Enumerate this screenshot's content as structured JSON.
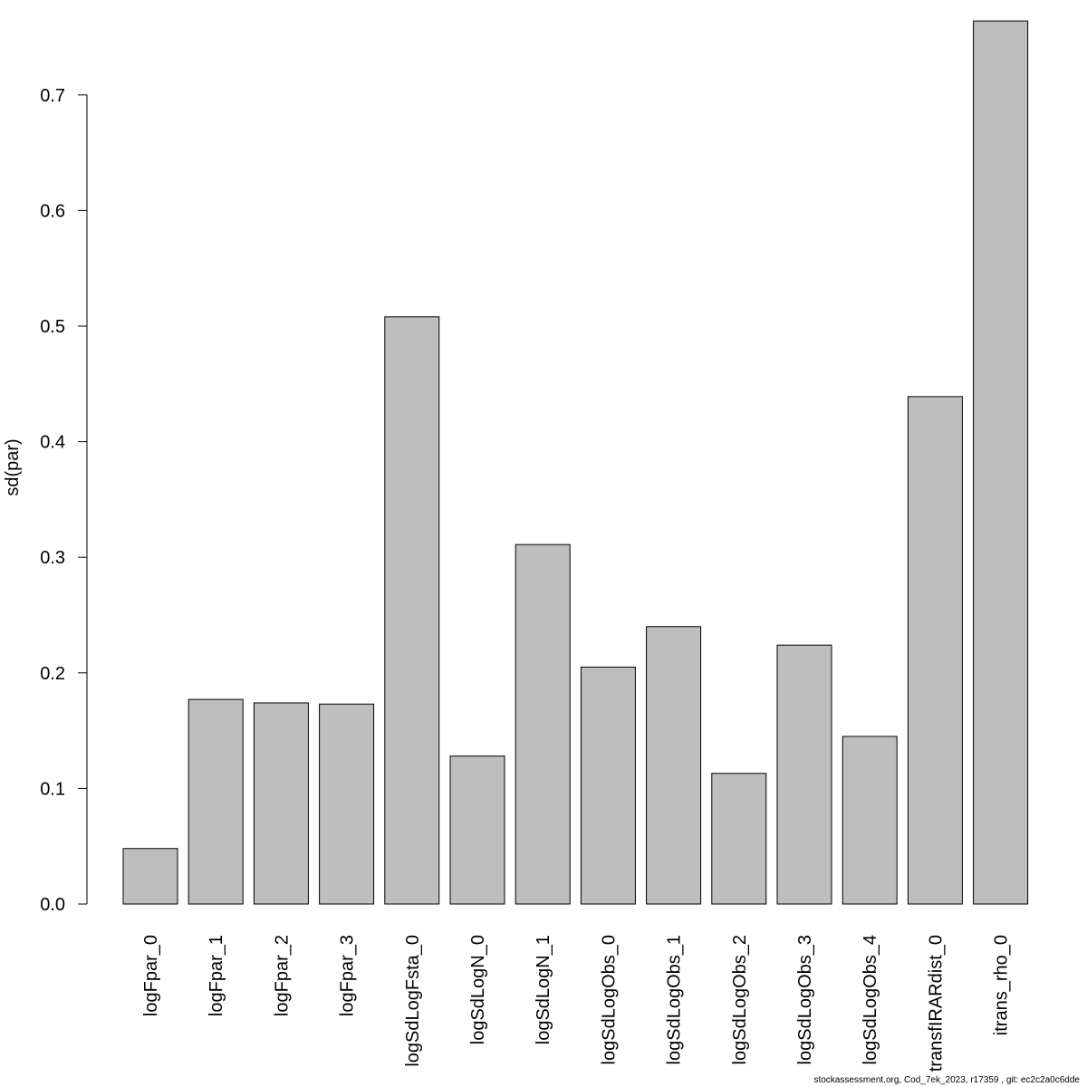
{
  "chart_data": {
    "type": "bar",
    "title": "",
    "xlabel": "",
    "ylabel": "sd(par)",
    "ylim": [
      0,
      0.78
    ],
    "yticks": [
      "0.0",
      "0.1",
      "0.2",
      "0.3",
      "0.4",
      "0.5",
      "0.6",
      "0.7"
    ],
    "grid": false,
    "bar_color": "#bebebe",
    "categories": [
      "logFpar_0",
      "logFpar_1",
      "logFpar_2",
      "logFpar_3",
      "logSdLogFsta_0",
      "logSdLogN_0",
      "logSdLogN_1",
      "logSdLogObs_0",
      "logSdLogObs_1",
      "logSdLogObs_2",
      "logSdLogObs_3",
      "logSdLogObs_4",
      "transfIRARdist_0",
      "itrans_rho_0"
    ],
    "values": [
      0.048,
      0.177,
      0.174,
      0.173,
      0.508,
      0.128,
      0.311,
      0.205,
      0.24,
      0.113,
      0.224,
      0.145,
      0.439,
      0.764
    ]
  },
  "footer": "stockassessment.org, Cod_7ek_2023, r17359 , git: ec2c2a0c6dde"
}
